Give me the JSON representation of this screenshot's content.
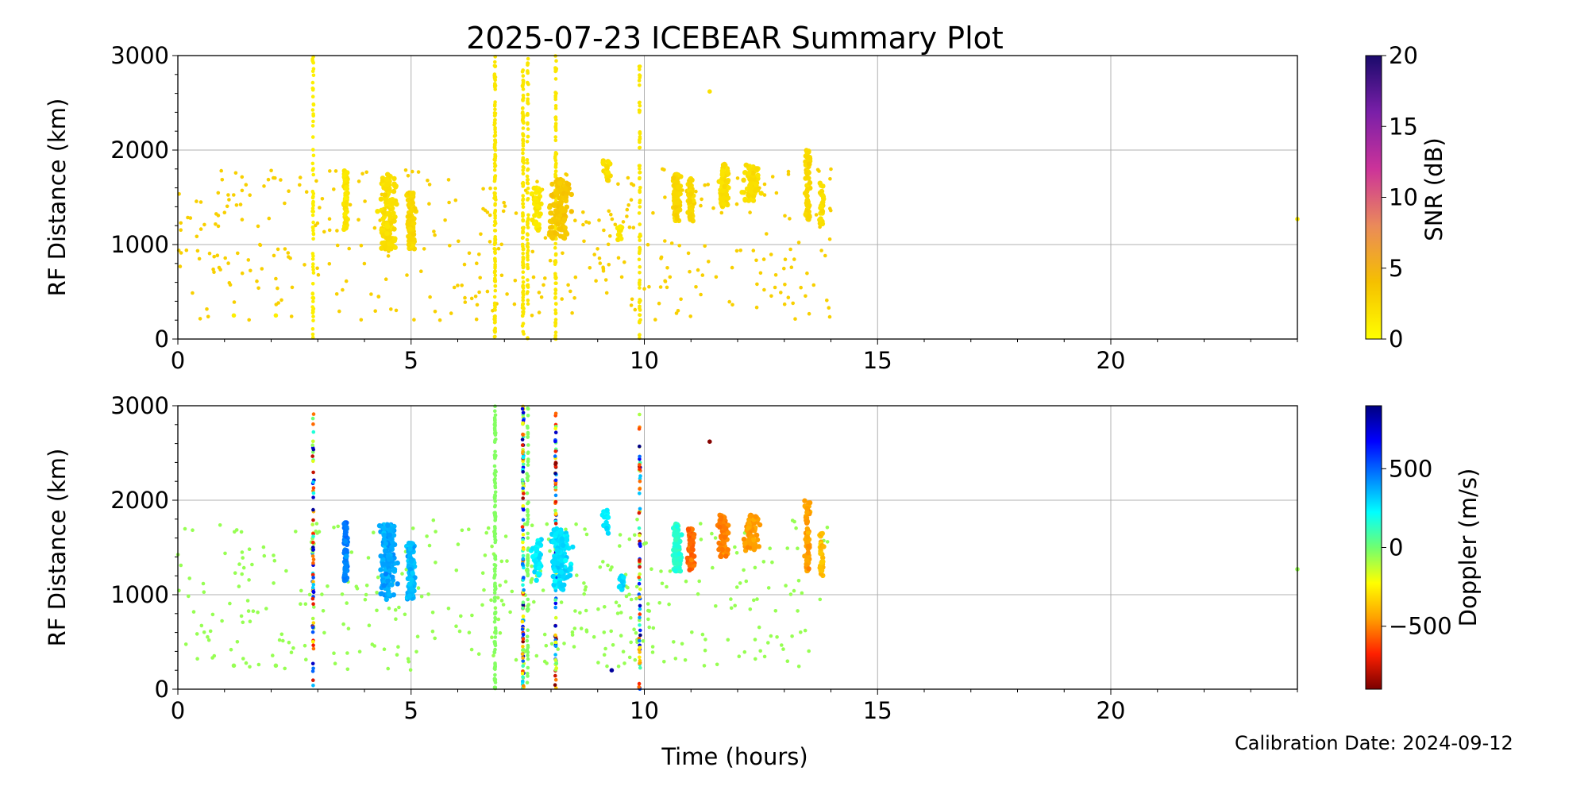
{
  "title": "2025-07-23 ICEBEAR Summary Plot",
  "xlabel": "Time (hours)",
  "calibration": "Calibration Date: 2024-09-12",
  "chart_data": [
    {
      "type": "scatter",
      "name": "snr-panel",
      "ylabel": "RF Distance (km)",
      "xlim": [
        0,
        24
      ],
      "ylim": [
        0,
        3000
      ],
      "xticks": [
        0,
        5,
        10,
        15,
        20
      ],
      "yticks": [
        0,
        1000,
        2000,
        3000
      ],
      "grid": true,
      "colorbar": {
        "label": "SNR (dB)",
        "range": [
          0,
          20
        ],
        "ticks": [
          0,
          5,
          10,
          15,
          20
        ],
        "colormap": [
          "#ffff00",
          "#f5c000",
          "#ea8a5a",
          "#cc3399",
          "#7a1fa8",
          "#1a0a6b"
        ]
      },
      "clusters": [
        {
          "x": 3.6,
          "ylo": 1150,
          "yhi": 1780,
          "count": 70,
          "spread": 0.06,
          "value": 1.5
        },
        {
          "x": 4.5,
          "ylo": 950,
          "yhi": 1750,
          "count": 150,
          "spread": 0.25,
          "value": 2.0
        },
        {
          "x": 5.0,
          "ylo": 950,
          "yhi": 1550,
          "count": 100,
          "spread": 0.12,
          "value": 2.5
        },
        {
          "x": 7.7,
          "ylo": 1150,
          "yhi": 1600,
          "count": 40,
          "spread": 0.15,
          "value": 1.5
        },
        {
          "x": 8.2,
          "ylo": 1050,
          "yhi": 1700,
          "count": 150,
          "spread": 0.3,
          "value": 3.5
        },
        {
          "x": 9.2,
          "ylo": 1650,
          "yhi": 1900,
          "count": 20,
          "spread": 0.12,
          "value": 2.0
        },
        {
          "x": 9.5,
          "ylo": 1050,
          "yhi": 1200,
          "count": 15,
          "spread": 0.1,
          "value": 1.5
        },
        {
          "x": 10.7,
          "ylo": 1250,
          "yhi": 1750,
          "count": 90,
          "spread": 0.12,
          "value": 2.5
        },
        {
          "x": 11.0,
          "ylo": 1250,
          "yhi": 1700,
          "count": 60,
          "spread": 0.1,
          "value": 2.5
        },
        {
          "x": 11.7,
          "ylo": 1400,
          "yhi": 1850,
          "count": 80,
          "spread": 0.15,
          "value": 2.0
        },
        {
          "x": 12.3,
          "ylo": 1450,
          "yhi": 1850,
          "count": 80,
          "spread": 0.25,
          "value": 2.0
        },
        {
          "x": 13.5,
          "ylo": 1250,
          "yhi": 2000,
          "count": 70,
          "spread": 0.08,
          "value": 2.5
        },
        {
          "x": 13.8,
          "ylo": 1200,
          "yhi": 1650,
          "count": 30,
          "spread": 0.06,
          "value": 2.0
        }
      ],
      "columns": [
        {
          "x": 2.9,
          "ylo": 0,
          "yhi": 3000,
          "count": 70,
          "value": 1.0
        },
        {
          "x": 6.8,
          "ylo": 0,
          "yhi": 3000,
          "count": 140,
          "value": 1.5
        },
        {
          "x": 7.4,
          "ylo": 0,
          "yhi": 3000,
          "count": 120,
          "value": 1.5
        },
        {
          "x": 7.5,
          "ylo": 0,
          "yhi": 3000,
          "count": 70,
          "value": 1.5
        },
        {
          "x": 8.1,
          "ylo": 0,
          "yhi": 3000,
          "count": 100,
          "value": 1.5
        },
        {
          "x": 9.9,
          "ylo": 0,
          "yhi": 3000,
          "count": 70,
          "value": 1.5
        }
      ],
      "background": {
        "xmin": 0,
        "xmax": 14,
        "ylo": 200,
        "yhi": 1800,
        "count": 380,
        "value": 3.0
      },
      "isolated": [
        {
          "x": 11.4,
          "y": 2620,
          "value": 2.0
        },
        {
          "x": 24.0,
          "y": 1270,
          "value": 1.0
        },
        {
          "x": 1.2,
          "y": 250,
          "value": 1.0
        },
        {
          "x": 2.1,
          "y": 250,
          "value": 1.0
        }
      ]
    },
    {
      "type": "scatter",
      "name": "doppler-panel",
      "ylabel": "RF Distance (km)",
      "xlim": [
        0,
        24
      ],
      "ylim": [
        0,
        3000
      ],
      "xticks": [
        0,
        5,
        10,
        15,
        20
      ],
      "yticks": [
        0,
        1000,
        2000,
        3000
      ],
      "grid": true,
      "colorbar": {
        "label": "Doppler (m/s)",
        "range": [
          -900,
          900
        ],
        "ticks": [
          -500,
          0,
          500
        ],
        "tick_labels": [
          "−500",
          "0",
          "500"
        ],
        "colormap": [
          "#7a0000",
          "#ff2000",
          "#ffa000",
          "#ffff00",
          "#70ff70",
          "#00ffff",
          "#0080ff",
          "#0000ff",
          "#000080"
        ]
      },
      "clusters": [
        {
          "x": 3.6,
          "ylo": 1150,
          "yhi": 1780,
          "count": 70,
          "spread": 0.06,
          "value": 450
        },
        {
          "x": 4.5,
          "ylo": 950,
          "yhi": 1750,
          "count": 150,
          "spread": 0.25,
          "value": 380
        },
        {
          "x": 5.0,
          "ylo": 950,
          "yhi": 1550,
          "count": 100,
          "spread": 0.12,
          "value": 350
        },
        {
          "x": 7.7,
          "ylo": 1150,
          "yhi": 1600,
          "count": 40,
          "spread": 0.15,
          "value": 250
        },
        {
          "x": 8.2,
          "ylo": 1050,
          "yhi": 1700,
          "count": 150,
          "spread": 0.3,
          "value": 280
        },
        {
          "x": 9.2,
          "ylo": 1650,
          "yhi": 1900,
          "count": 20,
          "spread": 0.12,
          "value": 250
        },
        {
          "x": 9.5,
          "ylo": 1050,
          "yhi": 1200,
          "count": 15,
          "spread": 0.1,
          "value": 300
        },
        {
          "x": 10.7,
          "ylo": 1250,
          "yhi": 1750,
          "count": 90,
          "spread": 0.12,
          "value": 150
        },
        {
          "x": 11.0,
          "ylo": 1250,
          "yhi": 1700,
          "count": 60,
          "spread": 0.1,
          "value": -550
        },
        {
          "x": 11.7,
          "ylo": 1400,
          "yhi": 1850,
          "count": 80,
          "spread": 0.15,
          "value": -500
        },
        {
          "x": 12.3,
          "ylo": 1450,
          "yhi": 1850,
          "count": 80,
          "spread": 0.25,
          "value": -450
        },
        {
          "x": 13.5,
          "ylo": 1250,
          "yhi": 2000,
          "count": 70,
          "spread": 0.08,
          "value": -450
        },
        {
          "x": 13.8,
          "ylo": 1200,
          "yhi": 1650,
          "count": 30,
          "spread": 0.06,
          "value": -380
        }
      ],
      "columns": [
        {
          "x": 2.9,
          "ylo": 0,
          "yhi": 3000,
          "count": 70,
          "value": 0,
          "mixed": true
        },
        {
          "x": 6.8,
          "ylo": 0,
          "yhi": 3000,
          "count": 140,
          "value": -30
        },
        {
          "x": 7.4,
          "ylo": 0,
          "yhi": 3000,
          "count": 120,
          "value": 0,
          "mixed": true
        },
        {
          "x": 7.5,
          "ylo": 0,
          "yhi": 3000,
          "count": 70,
          "value": -30
        },
        {
          "x": 8.1,
          "ylo": 0,
          "yhi": 3000,
          "count": 100,
          "value": 0,
          "mixed": true
        },
        {
          "x": 9.9,
          "ylo": 0,
          "yhi": 3000,
          "count": 70,
          "value": 0,
          "mixed": true
        }
      ],
      "background": {
        "xmin": 0,
        "xmax": 14,
        "ylo": 200,
        "yhi": 1800,
        "count": 380,
        "value": -60
      },
      "isolated": [
        {
          "x": 11.4,
          "y": 2620,
          "value": -880
        },
        {
          "x": 24.0,
          "y": 1270,
          "value": -60
        },
        {
          "x": 1.2,
          "y": 250,
          "value": -60
        },
        {
          "x": 2.1,
          "y": 250,
          "value": -60
        },
        {
          "x": 9.3,
          "y": 200,
          "value": 850
        }
      ]
    }
  ]
}
